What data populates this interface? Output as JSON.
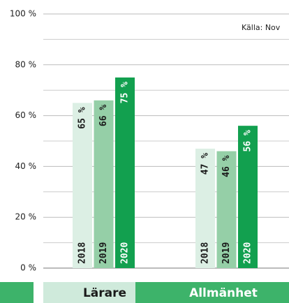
{
  "chart_data": {
    "type": "bar",
    "source": "Källa: Nov",
    "categories": [
      "Lärare",
      "Allmänhet"
    ],
    "series": [
      {
        "name": "2018",
        "color": "#dcefe4",
        "values": [
          65,
          47
        ],
        "value_labels": [
          "65 %",
          "47 %"
        ]
      },
      {
        "name": "2019",
        "color": "#95cfa7",
        "values": [
          66,
          46
        ],
        "value_labels": [
          "66 %",
          "46 %"
        ]
      },
      {
        "name": "2020",
        "color": "#12a04f",
        "values": [
          75,
          56
        ],
        "value_labels": [
          "75 %",
          "56 %"
        ]
      }
    ],
    "ylim": [
      0,
      100
    ],
    "yticks": [
      {
        "value": 0,
        "label": "0 %"
      },
      {
        "value": 20,
        "label": "20 %"
      },
      {
        "value": 40,
        "label": "40 %"
      },
      {
        "value": 60,
        "label": "60 %"
      },
      {
        "value": 80,
        "label": "80 %"
      },
      {
        "value": 100,
        "label": "100 %"
      }
    ],
    "minor_yticks": [
      10,
      30,
      50,
      70,
      90
    ],
    "grid": true
  }
}
